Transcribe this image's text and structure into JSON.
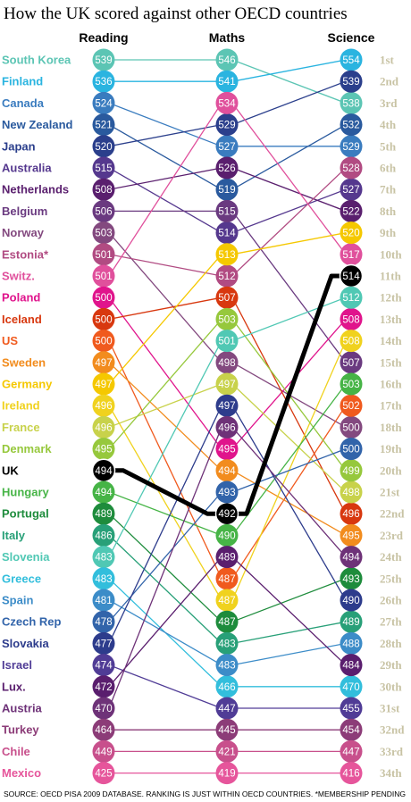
{
  "chart_data": {
    "type": "slope",
    "title": "How the UK scored against other OECD countries",
    "columns": [
      "Reading",
      "Maths",
      "Science"
    ],
    "highlight": "UK",
    "ranks": [
      "1st",
      "2nd",
      "3rd",
      "4th",
      "5th",
      "6th",
      "7th",
      "8th",
      "9th",
      "10th",
      "11th",
      "12th",
      "13th",
      "14th",
      "15th",
      "16th",
      "17th",
      "18th",
      "19th",
      "20th",
      "21st",
      "22nd",
      "23rd",
      "24th",
      "25th",
      "26th",
      "27th",
      "28th",
      "29th",
      "30th",
      "31st",
      "32nd",
      "33rd",
      "34th"
    ],
    "countries": [
      {
        "name": "South Korea",
        "color": "#5cc5b4",
        "reading": 539,
        "maths": 546,
        "science": 538
      },
      {
        "name": "Finland",
        "color": "#2ab4e0",
        "reading": 536,
        "maths": 541,
        "science": 554
      },
      {
        "name": "Canada",
        "color": "#3a7cbf",
        "reading": 524,
        "maths": 527,
        "science": 529
      },
      {
        "name": "New Zealand",
        "color": "#2a5a9e",
        "reading": 521,
        "maths": 519,
        "science": 532
      },
      {
        "name": "Japan",
        "color": "#2b3f8c",
        "reading": 520,
        "maths": 529,
        "science": 539
      },
      {
        "name": "Australia",
        "color": "#55388e",
        "reading": 515,
        "maths": 514,
        "science": 527
      },
      {
        "name": "Netherlands",
        "color": "#5a1f6e",
        "reading": 508,
        "maths": 526,
        "science": 522
      },
      {
        "name": "Belgium",
        "color": "#6a3a80",
        "reading": 506,
        "maths": 515,
        "science": 507
      },
      {
        "name": "Norway",
        "color": "#83497f",
        "reading": 503,
        "maths": 498,
        "science": 500
      },
      {
        "name": "Estonia*",
        "color": "#b14b82",
        "reading": 501,
        "maths": 512,
        "science": 528
      },
      {
        "name": "Switz.",
        "color": "#e0509c",
        "reading": 501,
        "maths": 534,
        "science": 517
      },
      {
        "name": "Poland",
        "color": "#e0148c",
        "reading": 500,
        "maths": 495,
        "science": 508
      },
      {
        "name": "Iceland",
        "color": "#d8380f",
        "reading": 500,
        "maths": 507,
        "science": 496
      },
      {
        "name": "US",
        "color": "#f05a1e",
        "reading": 500,
        "maths": 487,
        "science": 502
      },
      {
        "name": "Sweden",
        "color": "#f28c1e",
        "reading": 497,
        "maths": 494,
        "science": 495
      },
      {
        "name": "Germany",
        "color": "#f5c800",
        "reading": 497,
        "maths": 513,
        "science": 520
      },
      {
        "name": "Ireland",
        "color": "#f0d21e",
        "reading": 496,
        "maths": 487,
        "science": 508
      },
      {
        "name": "France",
        "color": "#c8d24b",
        "reading": 496,
        "maths": 497,
        "science": 498
      },
      {
        "name": "Denmark",
        "color": "#96c83c",
        "reading": 495,
        "maths": 503,
        "science": 499
      },
      {
        "name": "UK",
        "color": "#000000",
        "reading": 494,
        "maths": 492,
        "science": 514
      },
      {
        "name": "Hungary",
        "color": "#46b446",
        "reading": 494,
        "maths": 490,
        "science": 503
      },
      {
        "name": "Portugal",
        "color": "#1e8c3c",
        "reading": 489,
        "maths": 487,
        "science": 493
      },
      {
        "name": "Italy",
        "color": "#28a078",
        "reading": 486,
        "maths": 483,
        "science": 489
      },
      {
        "name": "Slovenia",
        "color": "#50c8b4",
        "reading": 483,
        "maths": 501,
        "science": 512
      },
      {
        "name": "Greece",
        "color": "#32bedc",
        "reading": 483,
        "maths": 466,
        "science": 470
      },
      {
        "name": "Spain",
        "color": "#3c8cc8",
        "reading": 481,
        "maths": 483,
        "science": 488
      },
      {
        "name": "Czech Rep",
        "color": "#3264aa",
        "reading": 478,
        "maths": 493,
        "science": 500
      },
      {
        "name": "Slovakia",
        "color": "#2d3c8c",
        "reading": 477,
        "maths": 497,
        "science": 490
      },
      {
        "name": "Israel",
        "color": "#503c96",
        "reading": 474,
        "maths": 447,
        "science": 455
      },
      {
        "name": "Lux.",
        "color": "#5a1e6e",
        "reading": 472,
        "maths": 489,
        "science": 484
      },
      {
        "name": "Austria",
        "color": "#6e3278",
        "reading": 470,
        "maths": 496,
        "science": 494
      },
      {
        "name": "Turkey",
        "color": "#8c3c78",
        "reading": 464,
        "maths": 445,
        "science": 454
      },
      {
        "name": "Chile",
        "color": "#c8508c",
        "reading": 449,
        "maths": 421,
        "science": 447
      },
      {
        "name": "Mexico",
        "color": "#e6559b",
        "reading": 425,
        "maths": 419,
        "science": 416
      }
    ]
  },
  "footer": "SOURCE: OECD PISA 2009 DATABASE. RANKING IS JUST WITHIN OECD COUNTRIES.    *MEMBERSHIP PENDING"
}
